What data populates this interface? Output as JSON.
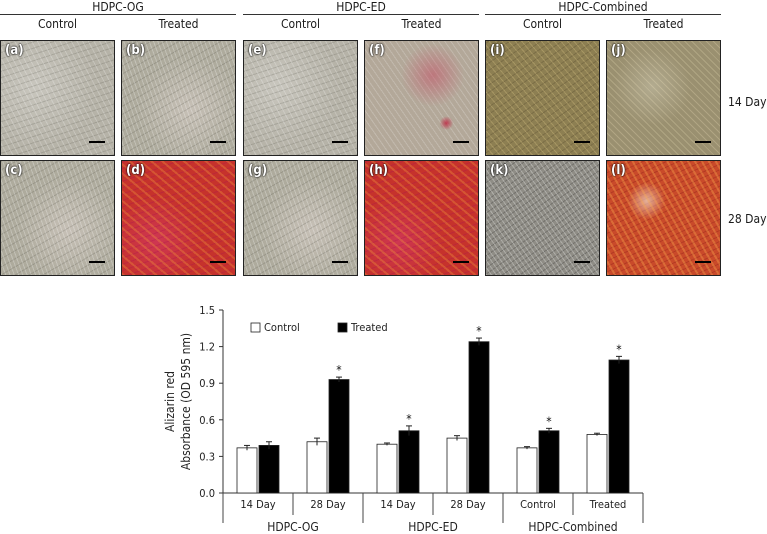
{
  "figure": {
    "groups": [
      {
        "title": "HDPC-OG",
        "control": "Control",
        "treated": "Treated"
      },
      {
        "title": "HDPC-ED",
        "control": "Control",
        "treated": "Treated"
      },
      {
        "title": "HDPC-Combined",
        "control": "Control",
        "treated": "Treated"
      }
    ],
    "row_labels": [
      "14 Day",
      "28 Day"
    ],
    "panels": [
      {
        "letter": "(a)",
        "texture": "gray"
      },
      {
        "letter": "(b)",
        "texture": "gray2"
      },
      {
        "letter": "(e)",
        "texture": "gray"
      },
      {
        "letter": "(f)",
        "texture": "pinkish"
      },
      {
        "letter": "(i)",
        "texture": "brown"
      },
      {
        "letter": "(j)",
        "texture": "brown2"
      },
      {
        "letter": "(c)",
        "texture": "gray2"
      },
      {
        "letter": "(d)",
        "texture": "red"
      },
      {
        "letter": "(g)",
        "texture": "gray2"
      },
      {
        "letter": "(h)",
        "texture": "red"
      },
      {
        "letter": "(k)",
        "texture": "darkgray"
      },
      {
        "letter": "(l)",
        "texture": "red2"
      }
    ]
  },
  "chart_data": {
    "type": "bar",
    "ylabel_line1": "Alizarin red",
    "ylabel_line2": "Absorbance (OD 595 nm)",
    "ylim": [
      0,
      1.5
    ],
    "yticks": [
      "0.0",
      "0.3",
      "0.6",
      "0.9",
      "1.2",
      "1.5"
    ],
    "categories": [
      "14 Day",
      "28 Day",
      "14 Day",
      "28 Day",
      "Control",
      "Treated"
    ],
    "group_labels": [
      "HDPC-OG",
      "HDPC-ED",
      "HDPC-Combined"
    ],
    "legend": [
      "Control",
      "Treated"
    ],
    "legend_placement": "top-left",
    "series": [
      {
        "name": "Control",
        "color": "#ffffff",
        "values": [
          0.37,
          0.42,
          0.4,
          0.45,
          0.37,
          0.48
        ],
        "errors": [
          0.02,
          0.03,
          0.01,
          0.02,
          0.01,
          0.01
        ],
        "significant": [
          false,
          false,
          false,
          false,
          false,
          false
        ]
      },
      {
        "name": "Treated",
        "color": "#000000",
        "values": [
          0.39,
          0.93,
          0.51,
          1.24,
          0.51,
          1.09
        ],
        "errors": [
          0.03,
          0.02,
          0.04,
          0.03,
          0.02,
          0.03
        ],
        "significant": [
          false,
          true,
          true,
          true,
          true,
          true
        ]
      }
    ],
    "significance_marker": "*"
  }
}
